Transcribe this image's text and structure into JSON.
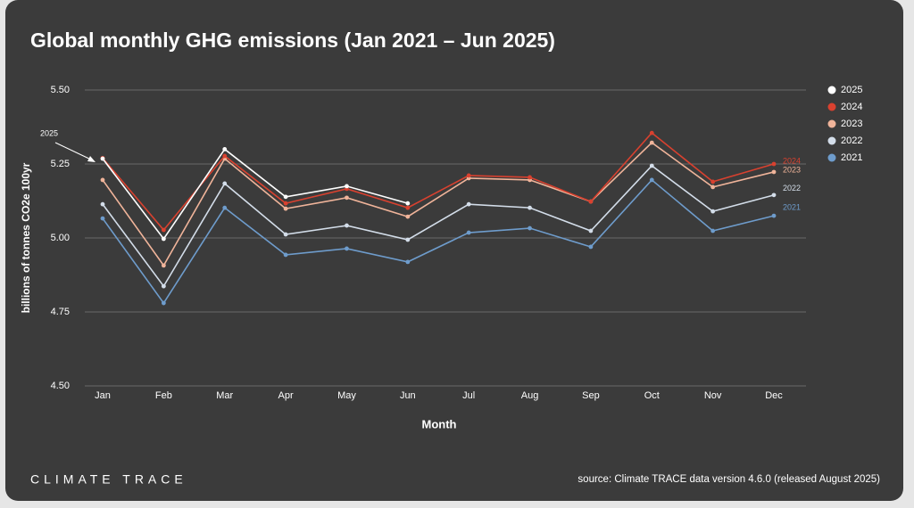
{
  "chart_data": {
    "type": "line",
    "title": "Global monthly GHG emissions (Jan 2021 – Jun 2025)",
    "x_label": "Month",
    "y_label": "billions of tonnes CO2e 100yr",
    "categories": [
      "Jan",
      "Feb",
      "Mar",
      "Apr",
      "May",
      "Jun",
      "Jul",
      "Aug",
      "Sep",
      "Oct",
      "Nov",
      "Dec"
    ],
    "series": [
      {
        "name": "2025",
        "color": "#ffffff",
        "values": [
          5.268,
          4.997,
          5.3,
          5.139,
          5.175,
          5.117,
          null,
          null,
          null,
          null,
          null,
          null
        ]
      },
      {
        "name": "2024",
        "color": "#d9412f",
        "values": [
          5.27,
          5.027,
          5.277,
          5.117,
          5.166,
          5.102,
          5.211,
          5.205,
          5.123,
          5.355,
          5.19,
          5.25
        ]
      },
      {
        "name": "2023",
        "color": "#f0b49a",
        "values": [
          5.196,
          4.907,
          5.268,
          5.099,
          5.136,
          5.072,
          5.202,
          5.196,
          5.123,
          5.322,
          5.172,
          5.223
        ]
      },
      {
        "name": "2022",
        "color": "#d3dde9",
        "values": [
          5.114,
          4.837,
          5.184,
          5.012,
          5.042,
          4.994,
          5.114,
          5.102,
          5.024,
          5.244,
          5.09,
          5.145
        ]
      },
      {
        "name": "2021",
        "color": "#6e9ccc",
        "values": [
          5.066,
          4.78,
          5.102,
          4.943,
          4.964,
          4.919,
          5.018,
          5.033,
          4.97,
          5.196,
          5.024,
          5.075
        ]
      }
    ],
    "ylim": [
      4.5,
      5.5
    ],
    "yticks": [
      {
        "value": 4.5,
        "label": "4.50"
      },
      {
        "value": 4.75,
        "label": "4.75"
      },
      {
        "value": 5,
        "label": "5.00"
      },
      {
        "value": 5.25,
        "label": "5.25"
      },
      {
        "value": 5.5,
        "label": "5.50"
      }
    ],
    "grid": true,
    "legend": "right",
    "brand": "CLIMATE TRACE",
    "source": "source: Climate TRACE data version 4.6.0 (released August 2025)"
  }
}
